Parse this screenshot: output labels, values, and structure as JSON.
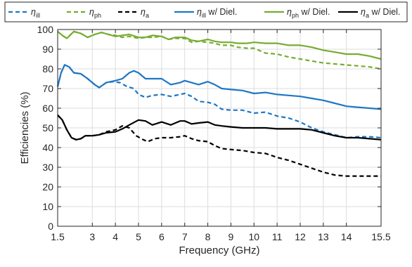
{
  "chart_data": {
    "type": "line",
    "xlabel": "Frequency (GHz)",
    "ylabel": "Efficiencies (%)",
    "xlim": [
      1.5,
      15.5
    ],
    "ylim": [
      0,
      100
    ],
    "x_ticks": [
      1.5,
      3,
      4,
      5,
      6,
      7,
      8,
      9,
      10,
      11,
      12,
      13,
      14,
      15.5
    ],
    "x_tick_labels": [
      "1.5",
      "3",
      "4",
      "5",
      "6",
      "7",
      "8",
      "9",
      "10",
      "11",
      "12",
      "13",
      "14",
      "15.5"
    ],
    "y_ticks": [
      0,
      10,
      20,
      30,
      40,
      50,
      60,
      70,
      80,
      90,
      100
    ],
    "y_tick_labels": [
      "0",
      "10",
      "20",
      "30",
      "40",
      "50",
      "60",
      "70",
      "80",
      "90",
      "100"
    ],
    "grid": true,
    "legend_position": "top",
    "series": [
      {
        "name": "η_ill",
        "legend_symbol": "η",
        "legend_sub": "ill",
        "legend_suffix": "",
        "color": "#1f77c4",
        "dash": "dashed",
        "points": [
          [
            1.5,
            71
          ],
          [
            1.65,
            78
          ],
          [
            1.8,
            82
          ],
          [
            2.0,
            81
          ],
          [
            2.2,
            78
          ],
          [
            2.5,
            77.5
          ],
          [
            2.8,
            75
          ],
          [
            3.1,
            72
          ],
          [
            3.3,
            70.5
          ],
          [
            3.6,
            73
          ],
          [
            3.9,
            73.5
          ],
          [
            4.2,
            73
          ],
          [
            4.5,
            71
          ],
          [
            4.8,
            70
          ],
          [
            5.0,
            67
          ],
          [
            5.3,
            65.5
          ],
          [
            5.6,
            66.5
          ],
          [
            6.0,
            67
          ],
          [
            6.4,
            66
          ],
          [
            6.8,
            67
          ],
          [
            7.0,
            67.5
          ],
          [
            7.3,
            66
          ],
          [
            7.6,
            63.5
          ],
          [
            8.0,
            63
          ],
          [
            8.3,
            62
          ],
          [
            8.6,
            59.5
          ],
          [
            9.0,
            59
          ],
          [
            9.5,
            59
          ],
          [
            10.0,
            57.5
          ],
          [
            10.5,
            58
          ],
          [
            11.0,
            56
          ],
          [
            11.5,
            55
          ],
          [
            12.0,
            53
          ],
          [
            12.5,
            50
          ],
          [
            13.0,
            48
          ],
          [
            13.5,
            46.5
          ],
          [
            14.0,
            45
          ],
          [
            14.5,
            45.5
          ],
          [
            15.0,
            45.5
          ],
          [
            15.5,
            45
          ]
        ]
      },
      {
        "name": "η_ph",
        "legend_symbol": "η",
        "legend_sub": "ph",
        "legend_suffix": "",
        "color": "#77ac30",
        "dash": "dashed",
        "points": [
          [
            1.5,
            99
          ],
          [
            1.7,
            97
          ],
          [
            1.9,
            95.5
          ],
          [
            2.2,
            99
          ],
          [
            2.5,
            98
          ],
          [
            2.8,
            96
          ],
          [
            3.1,
            97.5
          ],
          [
            3.4,
            98.5
          ],
          [
            3.7,
            97.5
          ],
          [
            4.0,
            97
          ],
          [
            4.3,
            96
          ],
          [
            4.6,
            96.5
          ],
          [
            5.0,
            95.5
          ],
          [
            5.3,
            96
          ],
          [
            5.6,
            96
          ],
          [
            6.0,
            96.5
          ],
          [
            6.3,
            95
          ],
          [
            6.6,
            95.5
          ],
          [
            7.0,
            95.5
          ],
          [
            7.3,
            93.5
          ],
          [
            7.6,
            94
          ],
          [
            8.0,
            93.5
          ],
          [
            8.3,
            93
          ],
          [
            8.6,
            92
          ],
          [
            9.0,
            92
          ],
          [
            9.3,
            91
          ],
          [
            9.7,
            90.5
          ],
          [
            10.0,
            90.5
          ],
          [
            10.5,
            88
          ],
          [
            11.0,
            87.5
          ],
          [
            11.5,
            86
          ],
          [
            12.0,
            85
          ],
          [
            12.5,
            84
          ],
          [
            13.0,
            83
          ],
          [
            13.5,
            82.5
          ],
          [
            14.0,
            82
          ],
          [
            14.5,
            81.5
          ],
          [
            15.0,
            81
          ],
          [
            15.5,
            80
          ]
        ]
      },
      {
        "name": "η_a",
        "legend_symbol": "η",
        "legend_sub": "a",
        "legend_suffix": "",
        "color": "#000000",
        "dash": "dashed",
        "points": [
          [
            1.5,
            56.5
          ],
          [
            1.7,
            54
          ],
          [
            1.9,
            49
          ],
          [
            2.1,
            45
          ],
          [
            2.3,
            44
          ],
          [
            2.5,
            44.5
          ],
          [
            2.7,
            46
          ],
          [
            3.0,
            46
          ],
          [
            3.3,
            46.5
          ],
          [
            3.6,
            48
          ],
          [
            4.0,
            49
          ],
          [
            4.3,
            51
          ],
          [
            4.6,
            50
          ],
          [
            4.9,
            46
          ],
          [
            5.2,
            44
          ],
          [
            5.4,
            43
          ],
          [
            5.7,
            44.5
          ],
          [
            6.0,
            45
          ],
          [
            6.4,
            45
          ],
          [
            6.8,
            45.5
          ],
          [
            7.0,
            46
          ],
          [
            7.3,
            44.5
          ],
          [
            7.6,
            43.5
          ],
          [
            8.0,
            43
          ],
          [
            8.3,
            41
          ],
          [
            8.6,
            39.5
          ],
          [
            9.0,
            39
          ],
          [
            9.5,
            38.5
          ],
          [
            10.0,
            37.5
          ],
          [
            10.5,
            37
          ],
          [
            11.0,
            35
          ],
          [
            11.5,
            33.5
          ],
          [
            12.0,
            31.5
          ],
          [
            12.5,
            29.5
          ],
          [
            13.0,
            27.5
          ],
          [
            13.5,
            26
          ],
          [
            14.0,
            25.5
          ],
          [
            14.5,
            25.5
          ],
          [
            15.0,
            25.5
          ],
          [
            15.5,
            25.5
          ]
        ]
      },
      {
        "name": "η_ill w/ Diel.",
        "legend_symbol": "η",
        "legend_sub": "ill",
        "legend_suffix": " w/ Diel.",
        "color": "#1f77c4",
        "dash": "solid",
        "points": [
          [
            1.5,
            71
          ],
          [
            1.65,
            78
          ],
          [
            1.8,
            82
          ],
          [
            2.0,
            81
          ],
          [
            2.2,
            78
          ],
          [
            2.5,
            77.5
          ],
          [
            2.8,
            75
          ],
          [
            3.1,
            72
          ],
          [
            3.3,
            70.5
          ],
          [
            3.6,
            73
          ],
          [
            4.0,
            74
          ],
          [
            4.3,
            75
          ],
          [
            4.6,
            78
          ],
          [
            4.8,
            79
          ],
          [
            5.0,
            78
          ],
          [
            5.3,
            75
          ],
          [
            5.6,
            75
          ],
          [
            6.0,
            75
          ],
          [
            6.4,
            72
          ],
          [
            6.8,
            73
          ],
          [
            7.0,
            74
          ],
          [
            7.3,
            73
          ],
          [
            7.6,
            72
          ],
          [
            8.0,
            73.5
          ],
          [
            8.3,
            72
          ],
          [
            8.6,
            70
          ],
          [
            9.0,
            69.5
          ],
          [
            9.5,
            69
          ],
          [
            10.0,
            67.5
          ],
          [
            10.5,
            68
          ],
          [
            11.0,
            67
          ],
          [
            11.5,
            66.5
          ],
          [
            12.0,
            66
          ],
          [
            12.5,
            65
          ],
          [
            13.0,
            64
          ],
          [
            13.5,
            62.5
          ],
          [
            14.0,
            61
          ],
          [
            14.5,
            60.5
          ],
          [
            15.0,
            60
          ],
          [
            15.5,
            59.5
          ]
        ]
      },
      {
        "name": "η_ph w/ Diel.",
        "legend_symbol": "η",
        "legend_sub": "ph",
        "legend_suffix": " w/ Diel.",
        "color": "#77ac30",
        "dash": "solid",
        "points": [
          [
            1.5,
            99
          ],
          [
            1.7,
            97
          ],
          [
            1.9,
            95.5
          ],
          [
            2.2,
            99
          ],
          [
            2.5,
            98
          ],
          [
            2.8,
            96
          ],
          [
            3.1,
            97.5
          ],
          [
            3.4,
            98.5
          ],
          [
            3.7,
            97.5
          ],
          [
            4.0,
            96.5
          ],
          [
            4.3,
            97
          ],
          [
            4.6,
            97.5
          ],
          [
            5.0,
            96
          ],
          [
            5.3,
            96
          ],
          [
            5.6,
            97
          ],
          [
            6.0,
            96.5
          ],
          [
            6.3,
            95
          ],
          [
            6.6,
            96
          ],
          [
            7.0,
            96
          ],
          [
            7.3,
            94.5
          ],
          [
            7.6,
            94
          ],
          [
            8.0,
            95
          ],
          [
            8.3,
            94
          ],
          [
            8.6,
            93.5
          ],
          [
            9.0,
            93.5
          ],
          [
            9.3,
            93
          ],
          [
            9.7,
            93
          ],
          [
            10.0,
            93.5
          ],
          [
            10.5,
            93
          ],
          [
            11.0,
            93
          ],
          [
            11.5,
            92
          ],
          [
            12.0,
            92
          ],
          [
            12.5,
            91
          ],
          [
            13.0,
            89.5
          ],
          [
            13.5,
            88.5
          ],
          [
            14.0,
            87.5
          ],
          [
            14.5,
            87.5
          ],
          [
            15.0,
            86.5
          ],
          [
            15.5,
            85
          ]
        ]
      },
      {
        "name": "η_a w/ Diel.",
        "legend_symbol": "η",
        "legend_sub": "a",
        "legend_suffix": " w/ Diel.",
        "color": "#000000",
        "dash": "solid",
        "points": [
          [
            1.5,
            56.5
          ],
          [
            1.7,
            54
          ],
          [
            1.9,
            49
          ],
          [
            2.1,
            45
          ],
          [
            2.3,
            44
          ],
          [
            2.5,
            44.5
          ],
          [
            2.7,
            46
          ],
          [
            3.0,
            46
          ],
          [
            3.3,
            46.5
          ],
          [
            3.6,
            47.5
          ],
          [
            4.0,
            48
          ],
          [
            4.3,
            49.5
          ],
          [
            4.6,
            51.5
          ],
          [
            5.0,
            54
          ],
          [
            5.3,
            53.5
          ],
          [
            5.6,
            51.5
          ],
          [
            6.0,
            53
          ],
          [
            6.4,
            51.5
          ],
          [
            6.8,
            53.5
          ],
          [
            7.0,
            53.5
          ],
          [
            7.3,
            52
          ],
          [
            7.6,
            52.5
          ],
          [
            8.0,
            53
          ],
          [
            8.3,
            51.5
          ],
          [
            8.6,
            51
          ],
          [
            9.0,
            50.5
          ],
          [
            9.5,
            50
          ],
          [
            10.0,
            50
          ],
          [
            10.5,
            50
          ],
          [
            11.0,
            49.5
          ],
          [
            11.5,
            49.5
          ],
          [
            12.0,
            49.5
          ],
          [
            12.5,
            49
          ],
          [
            13.0,
            47.5
          ],
          [
            13.5,
            46
          ],
          [
            14.0,
            45
          ],
          [
            14.5,
            45
          ],
          [
            15.0,
            44.5
          ],
          [
            15.5,
            44
          ]
        ]
      }
    ]
  }
}
